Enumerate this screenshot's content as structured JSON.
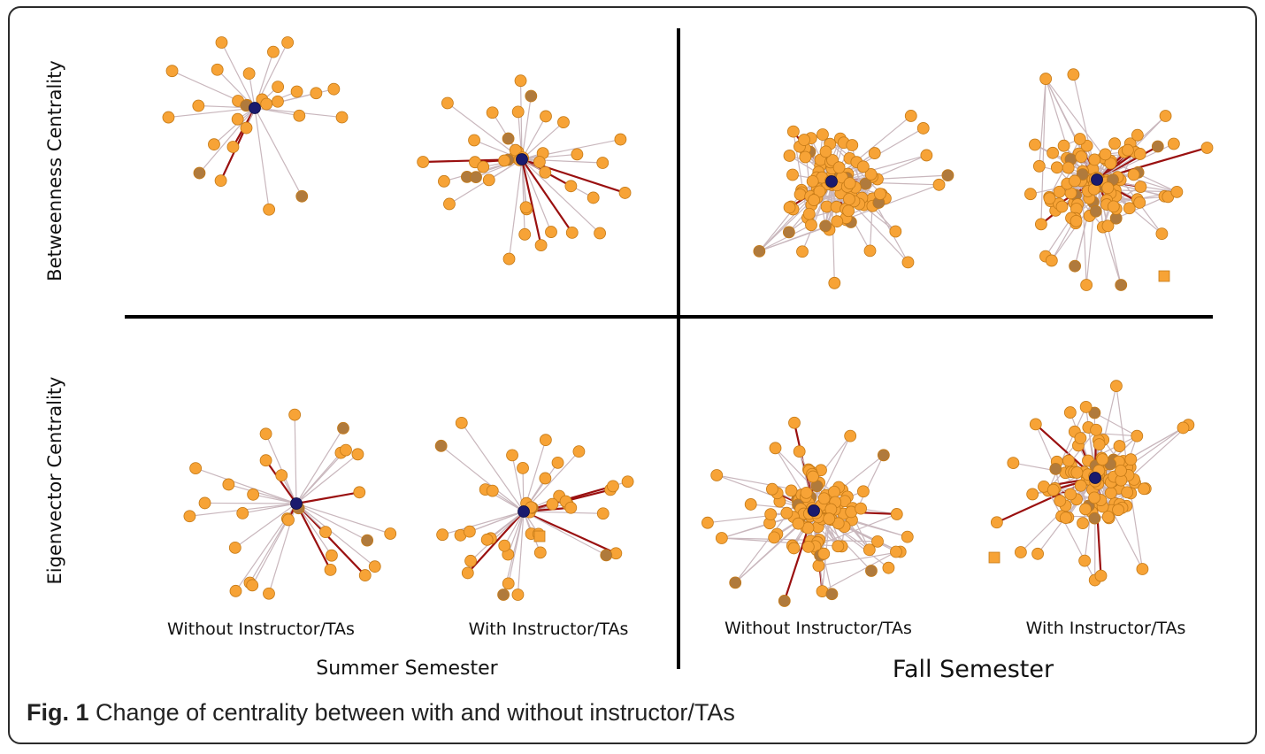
{
  "rows": {
    "betweenness": "Betweenness Centrality",
    "eigenvector": "Eigenvector Centrality"
  },
  "columns": {
    "without": "Without Instructor/TAs",
    "with": "With Instructor/TAs"
  },
  "semesters": {
    "summer": "Summer Semester",
    "fall": "Fall Semester"
  },
  "caption": {
    "label": "Fig. 1",
    "text": " Change of centrality between with and without instructor/TAs"
  },
  "colors": {
    "node_low": "#f7a336",
    "node_mid": "#b07a3c",
    "node_high": "#1a1a6e",
    "edge": "#c9b7bd",
    "edge_strong": "#9a1010"
  }
}
